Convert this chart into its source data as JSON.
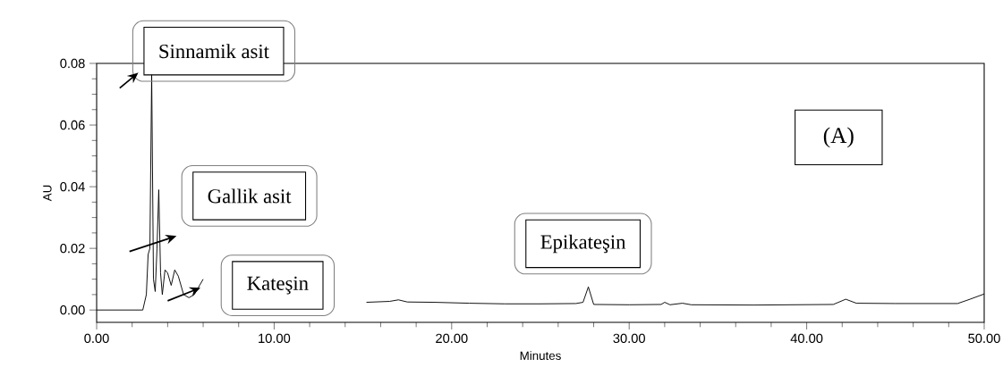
{
  "chart_data": {
    "type": "line",
    "xlabel": "Minutes",
    "ylabel": "AU",
    "x": [
      0,
      2.6,
      2.8,
      2.9,
      3.0,
      3.1,
      3.2,
      3.3,
      3.4,
      3.5,
      3.6,
      3.7,
      3.85,
      4.0,
      4.2,
      4.4,
      4.6,
      4.9,
      5.2,
      5.5,
      5.8,
      6.0,
      8,
      10,
      12,
      14,
      15.2,
      16.5,
      17,
      17.5,
      19,
      21,
      23,
      25,
      27,
      27.4,
      27.7,
      28,
      30,
      31.8,
      32.0,
      32.3,
      33,
      33.5,
      37,
      41.5,
      42.2,
      42.8,
      45,
      48.5,
      49.2,
      50
    ],
    "series": [
      {
        "color": "#000000",
        "values": [
          0,
          0,
          0.005,
          0.018,
          0.02,
          0.0765,
          0.01,
          0.006,
          0.02,
          0.039,
          0.012,
          0.005,
          0.013,
          0.012,
          0.008,
          0.013,
          0.011,
          0.005,
          0.004,
          0.005,
          0.008,
          0.01,
          null,
          null,
          null,
          null,
          0.0025,
          0.0028,
          0.0033,
          0.0026,
          0.0025,
          0.0022,
          0.002,
          0.002,
          0.0021,
          0.0025,
          0.0075,
          0.0018,
          0.0017,
          0.0018,
          0.0025,
          0.0017,
          0.0022,
          0.0017,
          0.0016,
          0.0018,
          0.0035,
          0.0022,
          0.0021,
          0.0021,
          0.0035,
          0.0052
        ]
      }
    ],
    "xlim": [
      0,
      50
    ],
    "ylim": [
      -0.004,
      0.08
    ],
    "xticks": [
      {
        "value": 0,
        "label": "0.00"
      },
      {
        "value": 10,
        "label": "10.00"
      },
      {
        "value": 20,
        "label": "20.00"
      },
      {
        "value": 30,
        "label": "30.00"
      },
      {
        "value": 40,
        "label": "40.00"
      },
      {
        "value": 50,
        "label": "50.00"
      }
    ],
    "yticks": [
      {
        "value": 0,
        "label": "0.00"
      },
      {
        "value": 0.02,
        "label": "0.02"
      },
      {
        "value": 0.04,
        "label": "0.04"
      },
      {
        "value": 0.06,
        "label": "0.06"
      },
      {
        "value": 0.08,
        "label": "0.08"
      }
    ],
    "grid": false,
    "marker": "none",
    "line_style": "solid",
    "annotations": [
      {
        "text": "Sinnamik asit",
        "x": 3.1,
        "y": 0.0765
      },
      {
        "text": "Gallik asit",
        "x": 3.5,
        "y": 0.039
      },
      {
        "text": "Kateşin",
        "x": 6.0,
        "y": 0.01
      },
      {
        "text": "Epikateşin",
        "x": 27.7,
        "y": 0.0075
      },
      "(A)"
    ]
  }
}
